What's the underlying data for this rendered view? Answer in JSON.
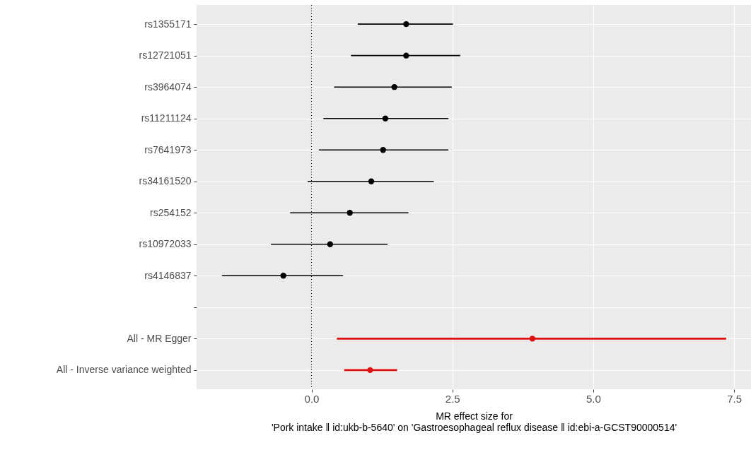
{
  "chart_data": {
    "type": "scatter",
    "orientation": "horizontal",
    "xlabel": "MR effect size for\n'Pork intake ‖ id:ukb-b-5640' on 'Gastroesophageal reflux disease ‖ id:ebi-a-GCST90000514'",
    "categories": [
      "rs1355171",
      "rs12721051",
      "rs3964074",
      "rs11211124",
      "rs7641973",
      "rs34161520",
      "rs254152",
      "rs10972033",
      "rs4146837",
      null,
      "All - MR Egger",
      "All - Inverse variance weighted"
    ],
    "series": [
      {
        "color": "#000000",
        "values": [
          1.68,
          1.68,
          1.47,
          1.31,
          1.27,
          1.06,
          0.68,
          0.33,
          -0.5,
          null,
          null,
          null
        ],
        "errors": [
          [
            0.82,
            2.51
          ],
          [
            0.7,
            2.64
          ],
          [
            0.4,
            2.49
          ],
          [
            0.21,
            2.43
          ],
          [
            0.13,
            2.43
          ],
          [
            -0.07,
            2.17
          ],
          [
            -0.38,
            1.72
          ],
          [
            -0.72,
            1.35
          ],
          [
            -1.59,
            0.56
          ],
          null,
          null,
          null
        ]
      },
      {
        "color": "#e01010",
        "values": [
          null,
          null,
          null,
          null,
          null,
          null,
          null,
          null,
          null,
          null,
          3.92,
          1.04
        ],
        "errors": [
          null,
          null,
          null,
          null,
          null,
          null,
          null,
          null,
          null,
          null,
          [
            0.45,
            7.36
          ],
          [
            0.58,
            1.52
          ]
        ]
      }
    ],
    "xlim": [
      -2.04,
      7.8
    ],
    "xticks": [
      {
        "value": 0,
        "label": "0.0"
      },
      2.5,
      {
        "value": 5,
        "label": "5.0"
      },
      7.5
    ],
    "ref_lines": [
      {
        "axis": "x",
        "value": 0,
        "color": "#000000",
        "line_style": "dotted"
      }
    ],
    "grid": true,
    "marker": "circle"
  }
}
